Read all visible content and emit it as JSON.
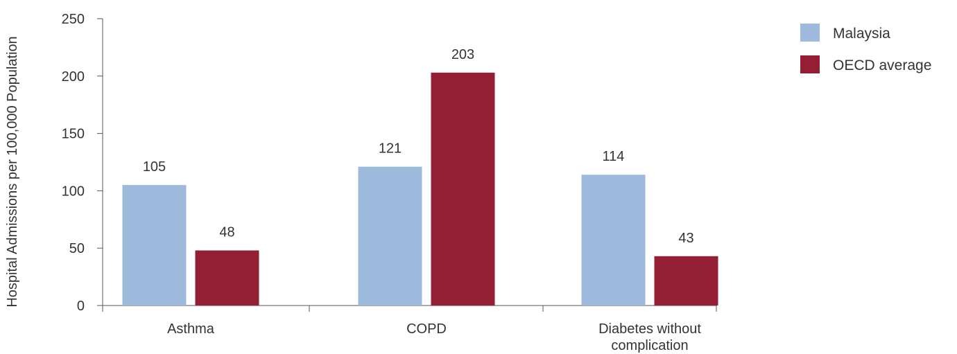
{
  "chart_data": {
    "type": "bar",
    "ylabel": "Hospital Admissions per 100,000 Population",
    "categories": [
      [
        "Asthma"
      ],
      [
        "COPD"
      ],
      [
        "Diabetes without",
        "complication"
      ]
    ],
    "series": [
      {
        "name": "Malaysia",
        "color": "#9DBADC",
        "values": [
          105,
          121,
          114
        ]
      },
      {
        "name": "OECD average",
        "color": "#941E34",
        "values": [
          48,
          203,
          43
        ]
      }
    ],
    "ylim": [
      0,
      250
    ],
    "yticks": [
      0,
      50,
      100,
      150,
      200,
      250
    ],
    "grid": false,
    "legend": "top-right"
  }
}
